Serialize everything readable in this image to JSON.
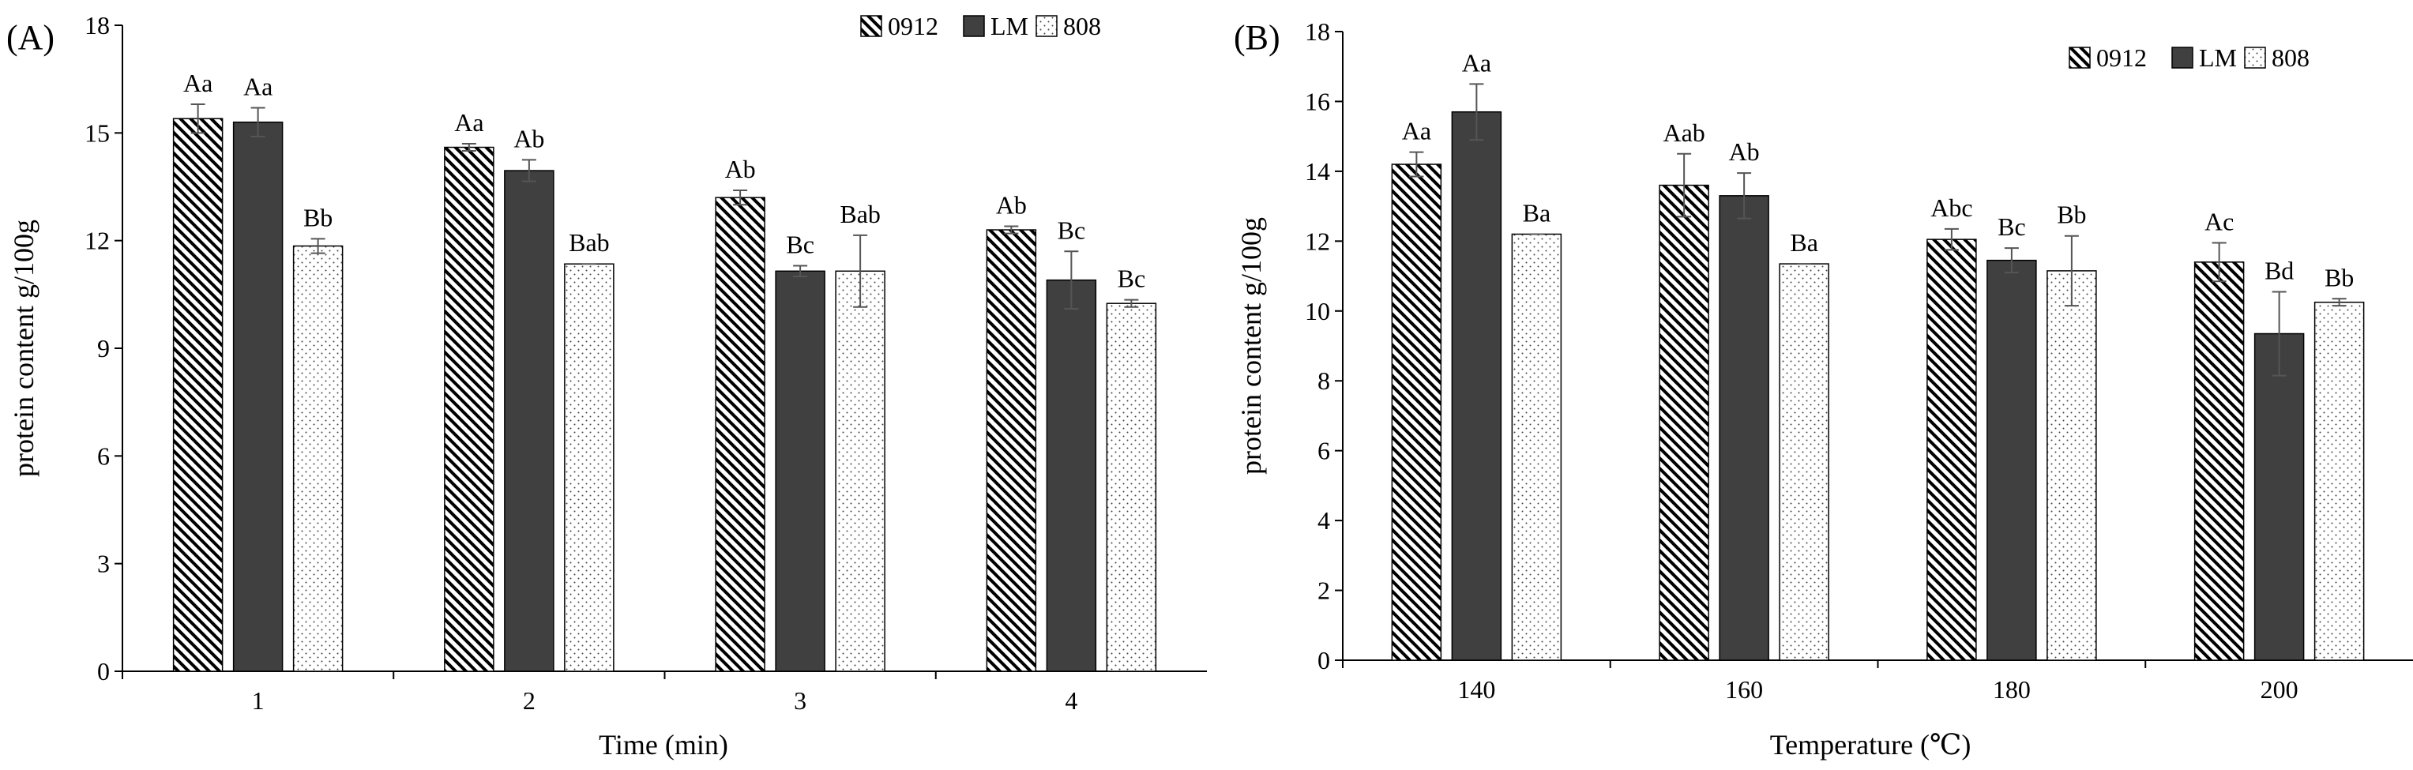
{
  "chart_data": [
    {
      "type": "bar",
      "panel_label": "(A)",
      "xlabel": "Time (min)",
      "ylabel": "protein content g/100g",
      "ylim": [
        0,
        18
      ],
      "yticks": [
        0,
        3,
        6,
        9,
        12,
        15,
        18
      ],
      "categories": [
        "1",
        "2",
        "3",
        "4"
      ],
      "series": [
        {
          "name": "0912",
          "pattern": "hatch",
          "values": [
            15.4,
            14.6,
            13.2,
            12.3
          ],
          "errors": [
            0.4,
            0.1,
            0.2,
            0.1
          ],
          "labels": [
            "Aa",
            "Aa",
            "Ab",
            "Ab"
          ]
        },
        {
          "name": "LM",
          "pattern": "solid",
          "values": [
            15.3,
            13.95,
            11.15,
            10.9
          ],
          "errors": [
            0.4,
            0.3,
            0.15,
            0.8
          ],
          "labels": [
            "Aa",
            "Ab",
            "Bc",
            "Bc"
          ]
        },
        {
          "name": "808",
          "pattern": "dots",
          "values": [
            11.85,
            11.35,
            11.15,
            10.25
          ],
          "errors": [
            0.2,
            0.0,
            1.0,
            0.1
          ],
          "labels": [
            "Bb",
            "Bab",
            "Bab",
            "Bc"
          ]
        }
      ],
      "legend": "top-right"
    },
    {
      "type": "bar",
      "panel_label": "(B)",
      "xlabel": "Temperature (℃)",
      "ylabel": "protein content g/100g",
      "ylim": [
        0,
        18
      ],
      "yticks": [
        0,
        2,
        4,
        6,
        8,
        10,
        12,
        14,
        16,
        18
      ],
      "categories": [
        "140",
        "160",
        "180",
        "200"
      ],
      "series": [
        {
          "name": "0912",
          "pattern": "hatch",
          "values": [
            14.2,
            13.6,
            12.05,
            11.4
          ],
          "errors": [
            0.35,
            0.9,
            0.3,
            0.55
          ],
          "labels": [
            "Aa",
            "Aab",
            "Abc",
            "Ac"
          ]
        },
        {
          "name": "LM",
          "pattern": "solid",
          "values": [
            15.7,
            13.3,
            11.45,
            9.35
          ],
          "errors": [
            0.8,
            0.65,
            0.35,
            1.2
          ],
          "labels": [
            "Aa",
            "Ab",
            "Bc",
            "Bd"
          ]
        },
        {
          "name": "808",
          "pattern": "dots",
          "values": [
            12.2,
            11.35,
            11.15,
            10.25
          ],
          "errors": [
            0.0,
            0.0,
            1.0,
            0.1
          ],
          "labels": [
            "Ba",
            "Ba",
            "Bb",
            "Bb"
          ]
        }
      ],
      "legend": "top-right"
    }
  ]
}
